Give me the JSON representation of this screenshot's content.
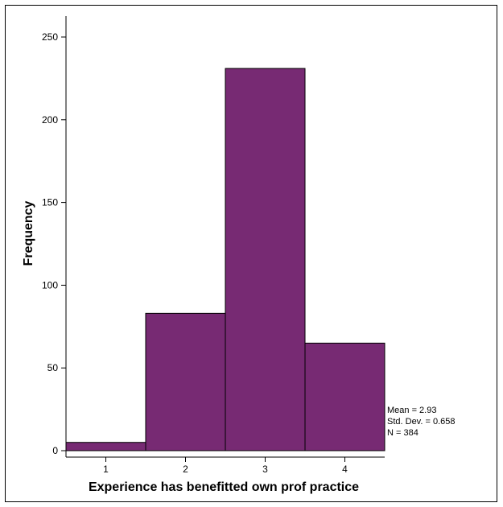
{
  "chart_data": {
    "type": "bar",
    "categories": [
      "1",
      "2",
      "3",
      "4"
    ],
    "values": [
      5,
      83,
      231,
      65
    ],
    "title": "",
    "xlabel": "Experience has benefitted own prof practice",
    "ylabel": "Frequency",
    "ylim": [
      0,
      260
    ],
    "yticks": [
      0,
      50,
      100,
      150,
      200,
      250
    ],
    "grid": false,
    "bar_color": "#772a73",
    "stats": {
      "mean": "Mean = 2.93",
      "std": "Std. Dev. = 0.658",
      "n": "N = 384"
    }
  }
}
